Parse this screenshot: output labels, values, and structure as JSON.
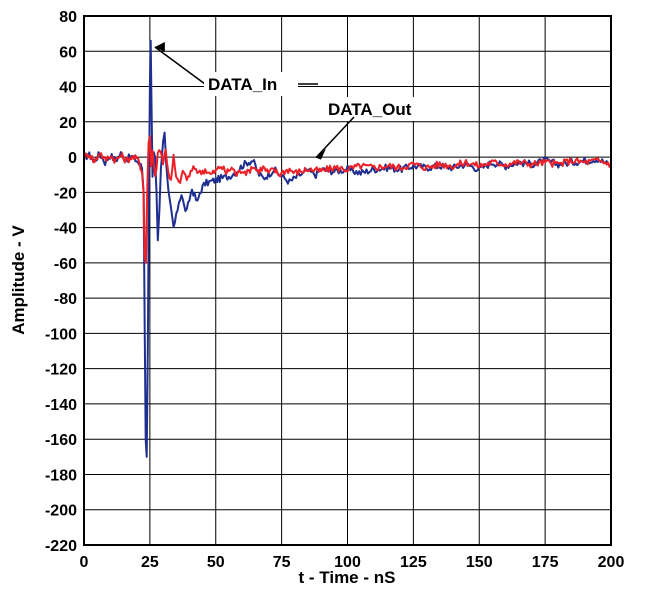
{
  "chart_data": {
    "type": "line",
    "title": "",
    "xlabel": "t - Time - nS",
    "ylabel": "Amplitude - V",
    "xlim": [
      0,
      200
    ],
    "ylim": [
      -220,
      80
    ],
    "xticks": [
      0,
      25,
      50,
      75,
      100,
      125,
      150,
      175,
      200
    ],
    "yticks": [
      80,
      60,
      40,
      20,
      0,
      -20,
      -40,
      -60,
      -80,
      -100,
      -120,
      -140,
      -160,
      -180,
      -200,
      -220
    ],
    "grid": true,
    "legend": "none",
    "annotations": [
      {
        "text": "DATA_In",
        "points_to": [
          25,
          63
        ]
      },
      {
        "text": "DATA_Out",
        "points_to": [
          85,
          -2
        ]
      }
    ],
    "series": [
      {
        "name": "DATA_In",
        "color": "#1f2f8f",
        "points": [
          [
            0,
            0
          ],
          [
            2,
            1
          ],
          [
            4,
            -2
          ],
          [
            6,
            2
          ],
          [
            8,
            -3
          ],
          [
            10,
            1
          ],
          [
            12,
            -2
          ],
          [
            14,
            2
          ],
          [
            16,
            -1
          ],
          [
            18,
            0
          ],
          [
            20,
            -2
          ],
          [
            21,
            -4
          ],
          [
            22,
            -6
          ],
          [
            22.6,
            -20
          ],
          [
            23,
            -90
          ],
          [
            23.4,
            -160
          ],
          [
            23.8,
            -170
          ],
          [
            24.2,
            -110
          ],
          [
            24.6,
            -30
          ],
          [
            25,
            40
          ],
          [
            25.3,
            66
          ],
          [
            25.6,
            30
          ],
          [
            26,
            -10
          ],
          [
            26.5,
            4
          ],
          [
            27,
            0
          ],
          [
            27.5,
            -20
          ],
          [
            28,
            -48
          ],
          [
            28.6,
            -30
          ],
          [
            29.2,
            -5
          ],
          [
            30,
            10
          ],
          [
            30.6,
            13
          ],
          [
            31.2,
            -5
          ],
          [
            32,
            -20
          ],
          [
            33,
            -30
          ],
          [
            34,
            -40
          ],
          [
            35,
            -34
          ],
          [
            36,
            -25
          ],
          [
            37,
            -21
          ],
          [
            38,
            -28
          ],
          [
            39,
            -31
          ],
          [
            40,
            -24
          ],
          [
            41,
            -18
          ],
          [
            42,
            -22
          ],
          [
            43,
            -26
          ],
          [
            44,
            -20
          ],
          [
            45,
            -17
          ],
          [
            46,
            -15
          ],
          [
            48,
            -14
          ],
          [
            50,
            -13
          ],
          [
            52,
            -12
          ],
          [
            55,
            -11
          ],
          [
            58,
            -8
          ],
          [
            60,
            -5
          ],
          [
            62,
            -3
          ],
          [
            64,
            -2
          ],
          [
            65,
            -5
          ],
          [
            66,
            -9
          ],
          [
            68,
            -12
          ],
          [
            70,
            -10
          ],
          [
            72,
            -7
          ],
          [
            75,
            -11
          ],
          [
            78,
            -14
          ],
          [
            80,
            -12
          ],
          [
            82,
            -10
          ],
          [
            85,
            -8
          ],
          [
            88,
            -10
          ],
          [
            90,
            -7
          ],
          [
            95,
            -8
          ],
          [
            100,
            -7
          ],
          [
            105,
            -9
          ],
          [
            110,
            -7
          ],
          [
            115,
            -6
          ],
          [
            120,
            -7
          ],
          [
            125,
            -5
          ],
          [
            130,
            -6
          ],
          [
            135,
            -5
          ],
          [
            140,
            -6
          ],
          [
            145,
            -4
          ],
          [
            150,
            -7
          ],
          [
            155,
            -3
          ],
          [
            160,
            -5
          ],
          [
            165,
            -3
          ],
          [
            170,
            -4
          ],
          [
            175,
            -2
          ],
          [
            180,
            -4
          ],
          [
            185,
            -3
          ],
          [
            190,
            -2
          ],
          [
            195,
            -1
          ],
          [
            200,
            -5
          ]
        ]
      },
      {
        "name": "DATA_Out",
        "color": "#ee2027",
        "points": [
          [
            0,
            0
          ],
          [
            2,
            2
          ],
          [
            4,
            -3
          ],
          [
            6,
            3
          ],
          [
            8,
            -2
          ],
          [
            10,
            1
          ],
          [
            12,
            -2
          ],
          [
            14,
            1
          ],
          [
            16,
            -2
          ],
          [
            18,
            0
          ],
          [
            20,
            -1
          ],
          [
            21,
            -3
          ],
          [
            22,
            -8
          ],
          [
            22.6,
            -20
          ],
          [
            23,
            -55
          ],
          [
            23.5,
            -60
          ],
          [
            24,
            -20
          ],
          [
            24.5,
            8
          ],
          [
            25,
            12
          ],
          [
            25.5,
            -5
          ],
          [
            26,
            4
          ],
          [
            27,
            -12
          ],
          [
            28,
            2
          ],
          [
            29,
            5
          ],
          [
            30,
            -3
          ],
          [
            31,
            4
          ],
          [
            32,
            -8
          ],
          [
            33,
            -14
          ],
          [
            34,
            0
          ],
          [
            35,
            -12
          ],
          [
            36,
            -15
          ],
          [
            37,
            -11
          ],
          [
            38,
            -8
          ],
          [
            39,
            -13
          ],
          [
            40,
            -10
          ],
          [
            42,
            -6
          ],
          [
            44,
            -9
          ],
          [
            46,
            -7
          ],
          [
            48,
            -10
          ],
          [
            50,
            -8
          ],
          [
            52,
            -5
          ],
          [
            54,
            -9
          ],
          [
            56,
            -6
          ],
          [
            58,
            -10
          ],
          [
            60,
            -7
          ],
          [
            62,
            -9
          ],
          [
            64,
            -5
          ],
          [
            66,
            -8
          ],
          [
            68,
            -6
          ],
          [
            70,
            -9
          ],
          [
            72,
            -7
          ],
          [
            74,
            -10
          ],
          [
            76,
            -8
          ],
          [
            78,
            -7
          ],
          [
            80,
            -9
          ],
          [
            85,
            -7
          ],
          [
            90,
            -8
          ],
          [
            95,
            -6
          ],
          [
            100,
            -7
          ],
          [
            105,
            -5
          ],
          [
            110,
            -6
          ],
          [
            115,
            -5
          ],
          [
            120,
            -6
          ],
          [
            125,
            -4
          ],
          [
            130,
            -6
          ],
          [
            135,
            -4
          ],
          [
            140,
            -5
          ],
          [
            145,
            -3
          ],
          [
            150,
            -5
          ],
          [
            155,
            -3
          ],
          [
            160,
            -4
          ],
          [
            165,
            -3
          ],
          [
            170,
            -4
          ],
          [
            175,
            -3
          ],
          [
            180,
            -4
          ],
          [
            185,
            -2
          ],
          [
            190,
            -3
          ],
          [
            195,
            -2
          ],
          [
            200,
            -4
          ]
        ]
      }
    ]
  }
}
